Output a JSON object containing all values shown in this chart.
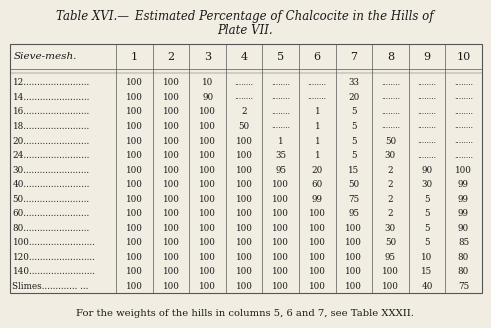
{
  "title_part1": "Table XVI.—",
  "title_part2": "Estimated Percentage of Chalcocite in the Hills of",
  "title_line2": "Plate VII.",
  "footer": "For the weights of the hills in columns 5, 6 and 7, see Table XXXII.",
  "col_headers": [
    "Sieve-mesh.",
    "1",
    "2",
    "3",
    "4",
    "5",
    "6",
    "7",
    "8",
    "9",
    "10"
  ],
  "dots": "........",
  "rows": [
    [
      "12........................",
      "100",
      "100",
      "10",
      "........",
      "........",
      "........",
      "33",
      "........",
      "........",
      "........"
    ],
    [
      "14........................",
      "100",
      "100",
      "90",
      "........",
      "........",
      "........",
      "20",
      "........",
      "........",
      "........"
    ],
    [
      "16........................",
      "100",
      "100",
      "100",
      "2",
      "........",
      "1",
      "5",
      "........",
      "........",
      "........"
    ],
    [
      "18........................",
      "100",
      "100",
      "100",
      "50",
      "........",
      "1",
      "5",
      "........",
      "........",
      "........"
    ],
    [
      "20........................",
      "100",
      "100",
      "100",
      "100",
      "1",
      "1",
      "5",
      "50",
      "........",
      "........"
    ],
    [
      "24........................",
      "100",
      "100",
      "100",
      "100",
      "35",
      "1",
      "5",
      "30",
      "........",
      "........"
    ],
    [
      "30........................",
      "100",
      "100",
      "100",
      "100",
      "95",
      "20",
      "15",
      "2",
      "90",
      "100"
    ],
    [
      "40........................",
      "100",
      "100",
      "100",
      "100",
      "100",
      "60",
      "50",
      "2",
      "30",
      "99"
    ],
    [
      "50........................",
      "100",
      "100",
      "100",
      "100",
      "100",
      "99",
      "75",
      "2",
      "5",
      "99"
    ],
    [
      "60........................",
      "100",
      "100",
      "100",
      "100",
      "100",
      "100",
      "95",
      "2",
      "5",
      "99"
    ],
    [
      "80........................",
      "100",
      "100",
      "100",
      "100",
      "100",
      "100",
      "100",
      "30",
      "5",
      "90"
    ],
    [
      "100........................",
      "100",
      "100",
      "100",
      "100",
      "100",
      "100",
      "100",
      "50",
      "5",
      "85"
    ],
    [
      "120........................",
      "100",
      "100",
      "100",
      "100",
      "100",
      "100",
      "100",
      "95",
      "10",
      "80"
    ],
    [
      "140........................",
      "100",
      "100",
      "100",
      "100",
      "100",
      "100",
      "100",
      "100",
      "15",
      "80"
    ],
    [
      "Slimes............. ...",
      "100",
      "100",
      "100",
      "100",
      "100",
      "100",
      "100",
      "100",
      "40",
      "75"
    ]
  ],
  "bg_color": "#f2ede3",
  "text_color": "#1a1a1a",
  "line_color": "#555555"
}
